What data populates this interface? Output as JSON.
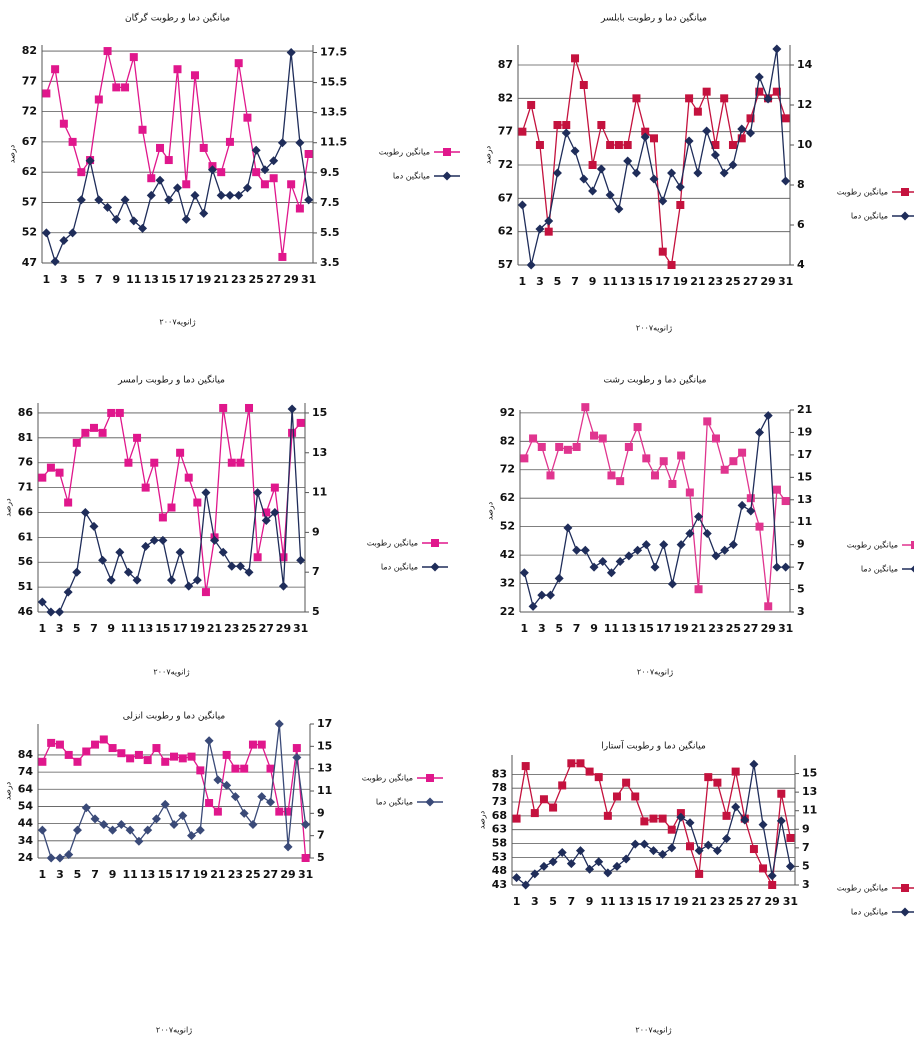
{
  "chart_data": [
    {
      "type": "line",
      "title": "میانگین دما و رطوبت گرگان",
      "x_label": "ژانویه۲۰۰۷",
      "y_label": "درصد",
      "categories": [
        1,
        null,
        3,
        null,
        5,
        null,
        7,
        null,
        9,
        null,
        11,
        null,
        13,
        null,
        15,
        null,
        17,
        null,
        19,
        null,
        21,
        null,
        23,
        null,
        25,
        null,
        27,
        null,
        29,
        null,
        31
      ],
      "ylim": [
        47,
        83
      ],
      "yticks": [
        47,
        52,
        57,
        62,
        67,
        72,
        77,
        82
      ],
      "y2lim": [
        3.5,
        18
      ],
      "y2ticks": [
        3.5,
        5.5,
        7.5,
        9.5,
        11.5,
        13.5,
        15.5,
        17.5
      ],
      "grid": true,
      "series": [
        {
          "name": "میانگین رطوبت",
          "color": "#e0178c",
          "marker": "square",
          "values": [
            75,
            79,
            70,
            67,
            62,
            64,
            74,
            82,
            76,
            76,
            81,
            69,
            61,
            66,
            64,
            79,
            60,
            78,
            66,
            63,
            62,
            67,
            80,
            71,
            62,
            60,
            61,
            48,
            60,
            56,
            65
          ]
        },
        {
          "name": "میانگین دما",
          "color": "#1f2d5a",
          "marker": "diamond",
          "axis": "y2",
          "values": [
            5.5,
            3.6,
            5.0,
            5.5,
            7.7,
            10.3,
            7.7,
            7.2,
            6.4,
            7.7,
            6.3,
            5.8,
            8.0,
            9.0,
            7.7,
            8.5,
            6.4,
            8.0,
            6.8,
            9.7,
            8.0,
            8.0,
            8.0,
            8.5,
            11.0,
            9.7,
            10.3,
            11.5,
            17.5,
            11.5,
            7.7
          ]
        }
      ]
    },
    {
      "type": "line",
      "title": "میانگین دما و رطوبت بابلسر",
      "x_label": "ژانویه۲۰۰۷",
      "y_label": "درصد",
      "categories": [
        1,
        null,
        3,
        null,
        5,
        null,
        7,
        null,
        9,
        null,
        11,
        null,
        13,
        null,
        15,
        null,
        17,
        null,
        19,
        null,
        21,
        null,
        23,
        null,
        25,
        null,
        27,
        null,
        29,
        null,
        31
      ],
      "ylim": [
        57,
        90
      ],
      "yticks": [
        57,
        62,
        67,
        72,
        77,
        82,
        87
      ],
      "y2lim": [
        4,
        15
      ],
      "y2ticks": [
        4,
        6,
        8,
        10,
        12,
        14
      ],
      "grid": true,
      "series": [
        {
          "name": "میانگین رطوبت",
          "color": "#c4123e",
          "marker": "square",
          "values": [
            77,
            81,
            75,
            62,
            78,
            78,
            88,
            84,
            72,
            78,
            75,
            75,
            75,
            82,
            77,
            76,
            59,
            57,
            66,
            82,
            80,
            83,
            75,
            82,
            75,
            76,
            79,
            83,
            82,
            83,
            79
          ]
        },
        {
          "name": "میانگین دما",
          "color": "#1f2d5a",
          "marker": "diamond",
          "axis": "y2",
          "values": [
            7.0,
            4.0,
            5.8,
            6.2,
            8.6,
            10.6,
            9.7,
            8.3,
            7.7,
            8.8,
            7.5,
            6.8,
            9.2,
            8.6,
            10.4,
            8.3,
            7.2,
            8.6,
            7.9,
            10.2,
            8.6,
            10.7,
            9.5,
            8.6,
            9.0,
            10.8,
            10.6,
            13.4,
            12.3,
            14.8,
            8.2
          ]
        }
      ]
    },
    {
      "type": "line",
      "title": "میانگین دما و رطوبت رامسر",
      "x_label": "ژانویه۲۰۰۷",
      "y_label": "درصد",
      "categories": [
        1,
        null,
        3,
        null,
        5,
        null,
        7,
        null,
        9,
        null,
        11,
        null,
        13,
        null,
        15,
        null,
        17,
        null,
        19,
        null,
        21,
        null,
        23,
        null,
        25,
        null,
        27,
        null,
        29,
        null,
        31
      ],
      "ylim": [
        46,
        88
      ],
      "yticks": [
        46,
        51,
        56,
        61,
        66,
        71,
        76,
        81,
        86
      ],
      "y2lim": [
        5,
        15.5
      ],
      "y2ticks": [
        5,
        7,
        9,
        11,
        13,
        15
      ],
      "grid": true,
      "series": [
        {
          "name": "میانگین رطوبت",
          "color": "#e0178c",
          "marker": "square",
          "values": [
            73,
            75,
            74,
            68,
            80,
            82,
            83,
            82,
            86,
            86,
            76,
            81,
            71,
            76,
            65,
            67,
            78,
            73,
            68,
            50,
            61,
            87,
            76,
            76,
            87,
            57,
            66,
            71,
            57,
            82,
            84
          ]
        },
        {
          "name": "میانگین دما",
          "color": "#1f2d5a",
          "marker": "diamond",
          "axis": "y2",
          "values": [
            5.5,
            5.0,
            5.0,
            6.0,
            7.0,
            10.0,
            9.3,
            7.6,
            6.6,
            8.0,
            7.0,
            6.6,
            8.3,
            8.6,
            8.6,
            6.6,
            8.0,
            6.3,
            6.6,
            11.0,
            8.6,
            8.0,
            7.3,
            7.3,
            7.0,
            11.0,
            9.6,
            10.0,
            6.3,
            15.2,
            7.6
          ]
        }
      ]
    },
    {
      "type": "line",
      "title": "میانگین دما و رطوبت رشت",
      "x_label": "ژانویه۲۰۰۷",
      "y_label": "درصد",
      "categories": [
        1,
        null,
        3,
        null,
        5,
        null,
        7,
        null,
        9,
        null,
        11,
        null,
        13,
        null,
        15,
        null,
        17,
        null,
        19,
        null,
        21,
        null,
        23,
        null,
        25,
        null,
        27,
        null,
        29,
        null,
        31
      ],
      "ylim": [
        22,
        93
      ],
      "yticks": [
        22,
        32,
        42,
        52,
        62,
        72,
        82,
        92
      ],
      "y2lim": [
        3,
        21
      ],
      "y2ticks": [
        3,
        5,
        7,
        9,
        11,
        13,
        15,
        17,
        19,
        21
      ],
      "grid": true,
      "series": [
        {
          "name": "میانگین رطوبت",
          "color": "#e0358f",
          "marker": "square",
          "values": [
            76,
            83,
            80,
            70,
            80,
            79,
            80,
            94,
            84,
            83,
            70,
            68,
            80,
            87,
            76,
            70,
            75,
            67,
            77,
            64,
            30,
            89,
            83,
            72,
            75,
            78,
            62,
            52,
            24,
            65,
            61
          ]
        },
        {
          "name": "میانگین دما",
          "color": "#1f2d5a",
          "marker": "diamond",
          "axis": "y2",
          "values": [
            6.5,
            3.5,
            4.5,
            4.5,
            6.0,
            10.5,
            8.5,
            8.5,
            7.0,
            7.5,
            6.5,
            7.5,
            8.0,
            8.5,
            9.0,
            7.0,
            9.0,
            5.5,
            9.0,
            10.0,
            11.5,
            10.0,
            8.0,
            8.5,
            9.0,
            12.5,
            12.0,
            19.0,
            20.5,
            7.0,
            7.0
          ]
        }
      ]
    },
    {
      "type": "line",
      "title": "میانگین دما و رطوبت انزلی",
      "x_label": "ژانویه۲۰۰۷",
      "y_label": "درصد",
      "categories": [
        1,
        null,
        3,
        null,
        5,
        null,
        7,
        null,
        9,
        null,
        11,
        null,
        13,
        null,
        15,
        null,
        17,
        null,
        19,
        null,
        21,
        null,
        23,
        null,
        25,
        null,
        27,
        null,
        29,
        null,
        31
      ],
      "ylim": [
        24,
        102
      ],
      "yticks": [
        24,
        34,
        44,
        54,
        64,
        74,
        84
      ],
      "y2lim": [
        5,
        17
      ],
      "y2ticks": [
        5,
        7,
        9,
        11,
        13,
        15,
        17
      ],
      "grid": true,
      "series": [
        {
          "name": "میانگین رطوبت",
          "color": "#e0178c",
          "marker": "square",
          "values": [
            80,
            91,
            90,
            84,
            80,
            86,
            90,
            93,
            88,
            85,
            82,
            84,
            81,
            88,
            80,
            83,
            82,
            83,
            75,
            56,
            51,
            84,
            76,
            76,
            90,
            90,
            76,
            51,
            51,
            88,
            24
          ]
        },
        {
          "name": "میانگین دما",
          "color": "#3a4a78",
          "marker": "diamond",
          "axis": "y2",
          "values": [
            7.5,
            5.0,
            5.0,
            5.3,
            7.5,
            9.5,
            8.5,
            8.0,
            7.5,
            8.0,
            7.5,
            6.5,
            7.5,
            8.5,
            9.8,
            8.0,
            8.8,
            7.0,
            7.5,
            15.5,
            12.0,
            11.5,
            10.5,
            9.0,
            8.0,
            10.5,
            10.0,
            17.0,
            6.0,
            14.0,
            8.0
          ]
        }
      ]
    },
    {
      "type": "line",
      "title": "میانگین دما و رطوبت آستارا",
      "x_label": "ژانویه۲۰۰۷",
      "y_label": "درصد",
      "categories": [
        1,
        null,
        3,
        null,
        5,
        null,
        7,
        null,
        9,
        null,
        11,
        null,
        13,
        null,
        15,
        null,
        17,
        null,
        19,
        null,
        21,
        null,
        23,
        null,
        25,
        null,
        27,
        null,
        29,
        null,
        31
      ],
      "ylim": [
        43,
        90
      ],
      "yticks": [
        43,
        48,
        53,
        58,
        63,
        68,
        73,
        78,
        83
      ],
      "y2lim": [
        3,
        17
      ],
      "y2ticks": [
        3,
        5,
        7,
        9,
        11,
        13,
        15
      ],
      "grid": true,
      "series": [
        {
          "name": "میانگین رطوبت",
          "color": "#c4123e",
          "marker": "square",
          "values": [
            67,
            86,
            69,
            74,
            71,
            79,
            87,
            87,
            84,
            82,
            68,
            75,
            80,
            75,
            66,
            67,
            67,
            63,
            69,
            57,
            47,
            82,
            80,
            68,
            84,
            67,
            56,
            49,
            43,
            76,
            60
          ]
        },
        {
          "name": "میانگین دما",
          "color": "#1f2d5a",
          "marker": "diamond",
          "axis": "y2",
          "values": [
            3.8,
            3.0,
            4.2,
            5.0,
            5.5,
            6.5,
            5.3,
            6.7,
            4.7,
            5.5,
            4.3,
            5.0,
            5.8,
            7.4,
            7.4,
            6.7,
            6.3,
            7.0,
            10.3,
            9.7,
            6.7,
            7.3,
            6.7,
            8.0,
            11.4,
            10.0,
            16.0,
            9.5,
            4.0,
            9.9,
            5.0
          ]
        }
      ]
    }
  ]
}
